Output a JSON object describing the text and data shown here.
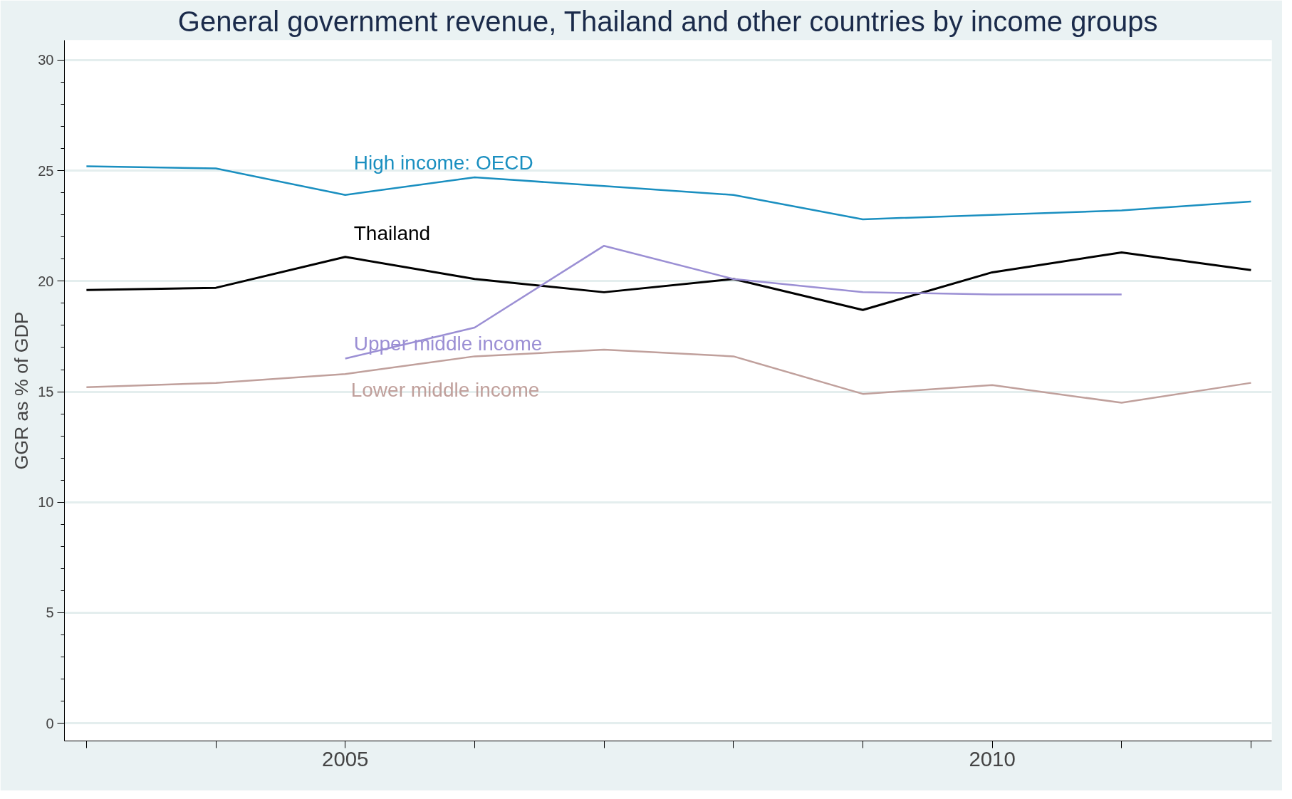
{
  "chart_data": {
    "type": "line",
    "title": "General government revenue, Thailand and other countries by income groups",
    "ylabel": "GGR as % of GDP",
    "x": [
      2003,
      2004,
      2005,
      2006,
      2007,
      2008,
      2009,
      2010,
      2011,
      2012
    ],
    "series": [
      {
        "name": "High income: OECD",
        "color": "#1a8fc0",
        "values": [
          25.2,
          25.1,
          23.9,
          24.7,
          24.3,
          23.9,
          22.8,
          23.0,
          23.2,
          23.6
        ]
      },
      {
        "name": "Thailand",
        "color": "#000000",
        "values": [
          19.6,
          19.7,
          21.1,
          20.1,
          19.5,
          20.1,
          18.7,
          20.4,
          21.3,
          20.5
        ]
      },
      {
        "name": "Upper middle income",
        "color": "#9b8fd4",
        "values": [
          null,
          null,
          16.5,
          17.9,
          21.6,
          20.1,
          19.5,
          19.4,
          19.4,
          null
        ]
      },
      {
        "name": "Lower middle income",
        "color": "#c0a09c",
        "values": [
          15.2,
          15.4,
          15.8,
          16.6,
          16.9,
          16.6,
          14.9,
          15.3,
          14.5,
          15.4
        ]
      }
    ],
    "xlim": [
      2002.83,
      2012.16
    ],
    "ylim": [
      -0.8,
      30.9
    ],
    "xticks": [
      {
        "value": 2003,
        "label": null
      },
      {
        "value": 2004,
        "label": null
      },
      2005,
      {
        "value": 2006,
        "label": null
      },
      {
        "value": 2007,
        "label": null
      },
      {
        "value": 2008,
        "label": null
      },
      {
        "value": 2009,
        "label": null
      },
      2010,
      {
        "value": 2011,
        "label": null
      },
      {
        "value": 2012,
        "label": null
      }
    ],
    "yticks": [
      0,
      5,
      10,
      15,
      20,
      25,
      30
    ],
    "grid": "y",
    "line_style": "solid",
    "marker": "none"
  }
}
